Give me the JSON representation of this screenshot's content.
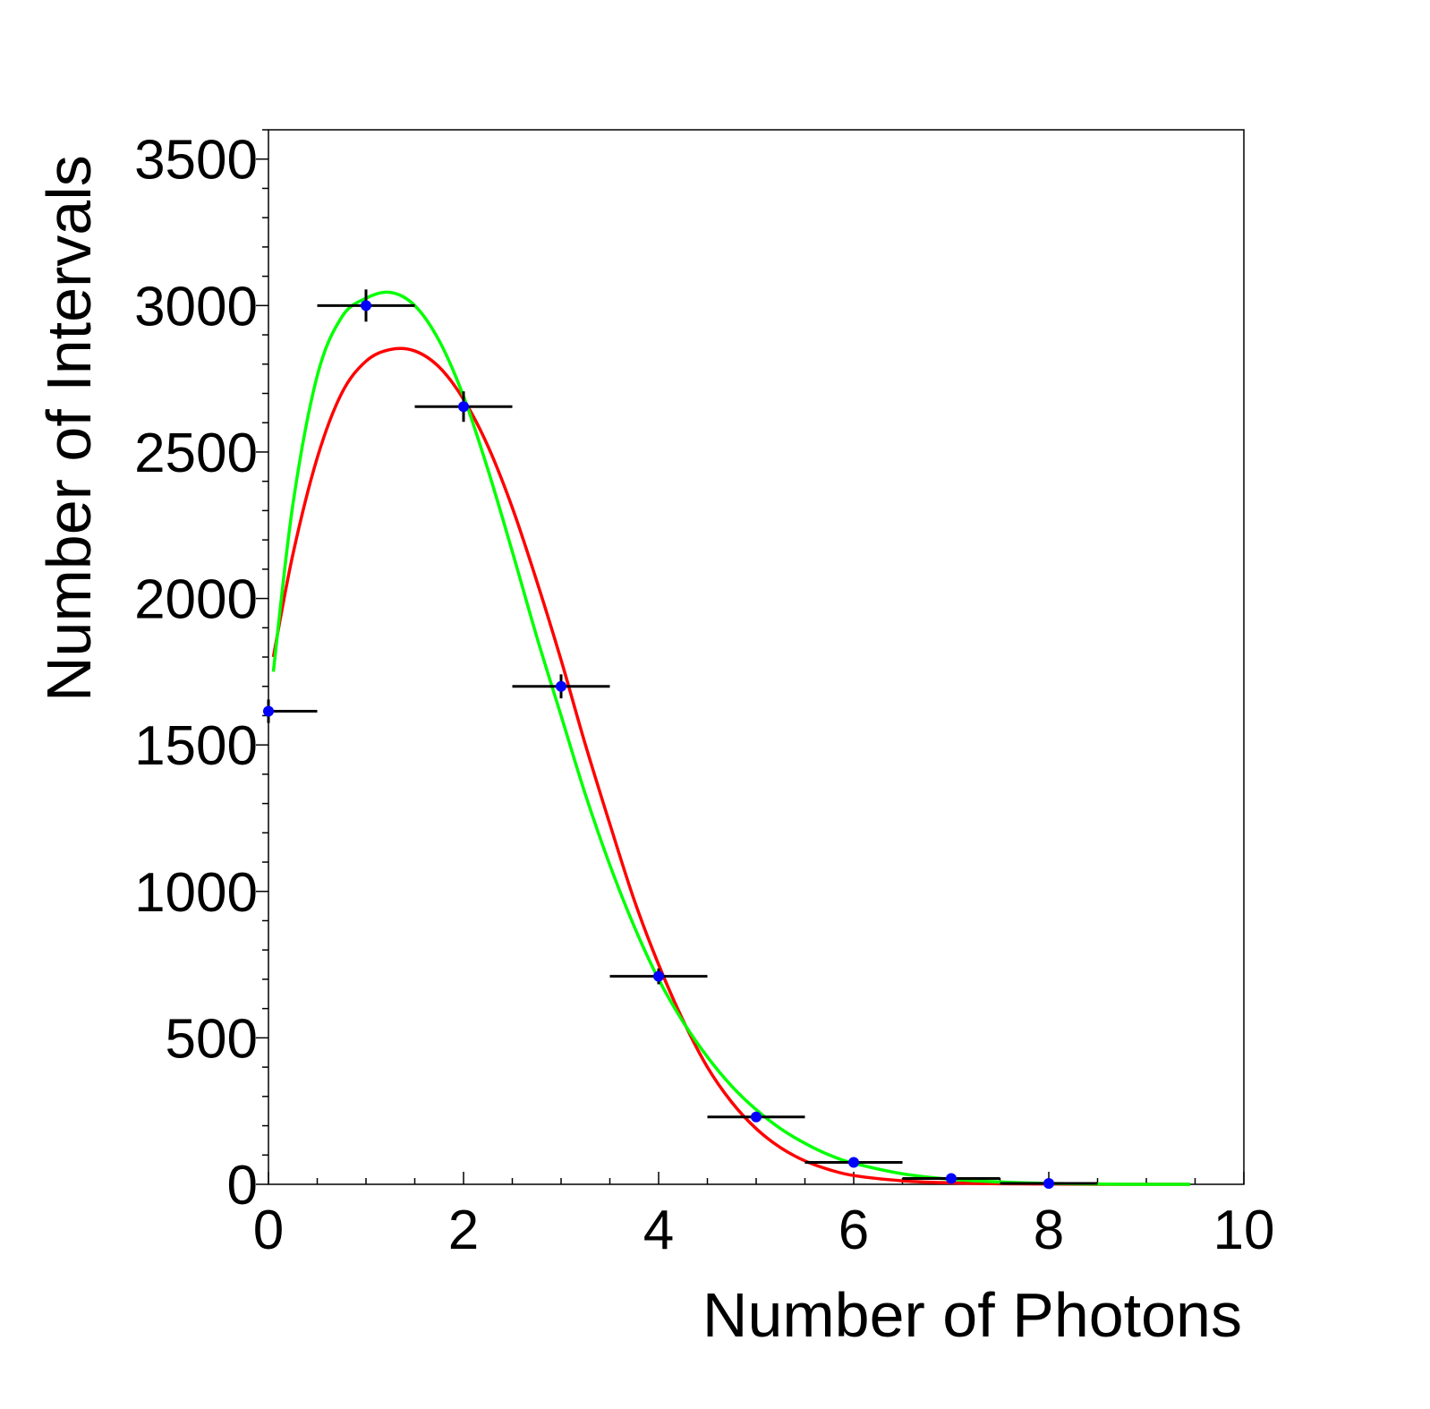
{
  "chart_data": {
    "type": "scatter",
    "title": "",
    "xlabel": "Number of Photons",
    "ylabel": "Number of Intervals",
    "xlim": [
      0,
      10
    ],
    "ylim": [
      0,
      3600
    ],
    "grid": false,
    "legend": "none",
    "x_ticks": [
      0,
      2,
      4,
      6,
      8,
      10
    ],
    "x_tick_labels": [
      "0",
      "2",
      "4",
      "6",
      "8",
      "10"
    ],
    "y_ticks": [
      0,
      500,
      1000,
      1500,
      2000,
      2500,
      3000,
      3500
    ],
    "y_tick_labels": [
      "0",
      "500",
      "1000",
      "1500",
      "2000",
      "2500",
      "3000",
      "3500"
    ],
    "series": [
      {
        "type": "points",
        "color": "#0000ff",
        "error_bar_color": "#000000",
        "points": [
          {
            "x": 0,
            "y": 1615,
            "xerr": 0.5,
            "yerr": 40
          },
          {
            "x": 1,
            "y": 3000,
            "xerr": 0.5,
            "yerr": 55
          },
          {
            "x": 2,
            "y": 2655,
            "xerr": 0.5,
            "yerr": 52
          },
          {
            "x": 3,
            "y": 1700,
            "xerr": 0.5,
            "yerr": 41
          },
          {
            "x": 4,
            "y": 710,
            "xerr": 0.5,
            "yerr": 27
          },
          {
            "x": 5,
            "y": 230,
            "xerr": 0.5,
            "yerr": 15
          },
          {
            "x": 6,
            "y": 75,
            "xerr": 0.5,
            "yerr": 9
          },
          {
            "x": 7,
            "y": 20,
            "xerr": 0.5,
            "yerr": 4
          },
          {
            "x": 8,
            "y": 3,
            "xerr": 0.5,
            "yerr": 2
          }
        ]
      },
      {
        "type": "curve",
        "color": "#ff0000",
        "x": [
          0.05,
          0.25,
          0.5,
          0.75,
          1.0,
          1.25,
          1.5,
          1.75,
          2.0,
          2.25,
          2.5,
          2.75,
          3.0,
          3.25,
          3.5,
          3.75,
          4.0,
          4.25,
          4.5,
          4.75,
          5.0,
          5.25,
          5.5,
          5.75,
          6.0,
          6.5,
          7.0,
          7.5,
          8.0,
          8.5,
          9.0,
          9.45
        ],
        "y": [
          1800,
          2150,
          2480,
          2700,
          2810,
          2850,
          2845,
          2790,
          2680,
          2520,
          2310,
          2060,
          1790,
          1500,
          1230,
          970,
          750,
          560,
          400,
          280,
          190,
          125,
          80,
          50,
          30,
          12,
          5,
          2,
          1,
          0,
          0,
          0
        ]
      },
      {
        "type": "curve",
        "color": "#00ff00",
        "x": [
          0.05,
          0.25,
          0.5,
          0.75,
          1.0,
          1.25,
          1.5,
          1.75,
          2.0,
          2.25,
          2.5,
          2.75,
          3.0,
          3.25,
          3.5,
          3.75,
          4.0,
          4.25,
          4.5,
          4.75,
          5.0,
          5.25,
          5.5,
          5.75,
          6.0,
          6.5,
          7.0,
          7.5,
          8.0,
          8.5,
          9.0,
          9.45
        ],
        "y": [
          1750,
          2320,
          2760,
          2960,
          3025,
          3045,
          3000,
          2880,
          2690,
          2440,
          2160,
          1870,
          1600,
          1330,
          1090,
          880,
          700,
          555,
          435,
          335,
          255,
          190,
          140,
          100,
          72,
          36,
          17,
          8,
          3,
          1,
          0,
          0
        ]
      }
    ]
  }
}
